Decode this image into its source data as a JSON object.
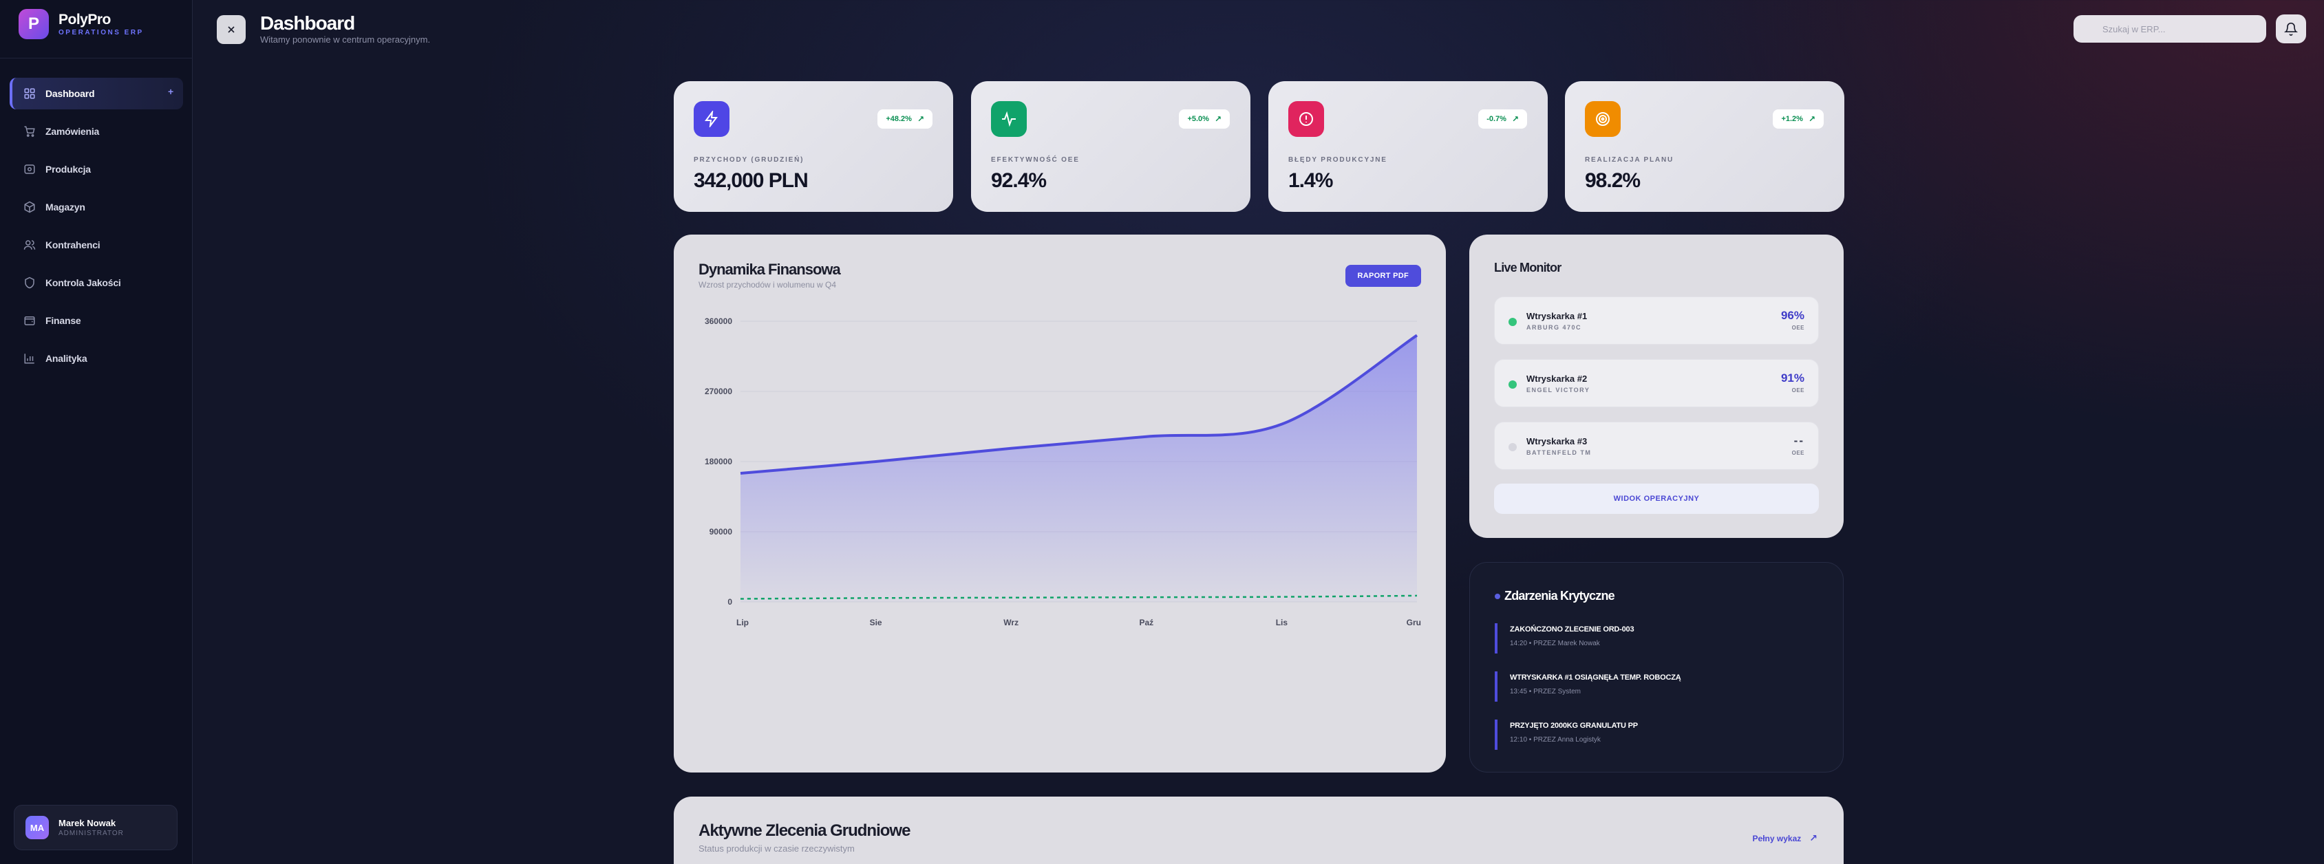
{
  "brand": {
    "name": "PolyPro",
    "sub": "OPERATIONS ERP",
    "logo_letter": "P"
  },
  "nav": {
    "items": [
      {
        "label": "Dashboard",
        "icon": "grid-icon",
        "active": true,
        "plus": "+"
      },
      {
        "label": "Zamówienia",
        "icon": "cart-icon"
      },
      {
        "label": "Produkcja",
        "icon": "factory-icon"
      },
      {
        "label": "Magazyn",
        "icon": "box-icon"
      },
      {
        "label": "Kontrahenci",
        "icon": "users-icon"
      },
      {
        "label": "Kontrola Jakości",
        "icon": "shield-icon"
      },
      {
        "label": "Finanse",
        "icon": "wallet-icon"
      },
      {
        "label": "Analityka",
        "icon": "bar-chart-icon"
      }
    ]
  },
  "user": {
    "initials": "MA",
    "name": "Marek Nowak",
    "role": "ADMINISTRATOR"
  },
  "header": {
    "title": "Dashboard",
    "subtitle": "Witamy ponownie w centrum operacyjnym.",
    "search_placeholder": "Szukaj w ERP..."
  },
  "kpis": [
    {
      "label": "PRZYCHODY (GRUDZIEŃ)",
      "value": "342,000 PLN",
      "badge": "+48.2%",
      "color": "#4f46e5",
      "icon": "bolt-icon"
    },
    {
      "label": "EFEKTYWNOŚĆ OEE",
      "value": "92.4%",
      "badge": "+5.0%",
      "color": "#10a36a",
      "icon": "activity-icon"
    },
    {
      "label": "BŁĘDY PRODUKCYJNE",
      "value": "1.4%",
      "badge": "-0.7%",
      "color": "#e0245e",
      "icon": "alert-icon"
    },
    {
      "label": "REALIZACJA PLANU",
      "value": "98.2%",
      "badge": "+1.2%",
      "color": "#f08c00",
      "icon": "target-icon"
    }
  ],
  "finance": {
    "title": "Dynamika Finansowa",
    "subtitle": "Wzrost przychodów i wolumenu w Q4",
    "button": "RAPORT PDF"
  },
  "chart_data": {
    "type": "area",
    "categories": [
      "Lip",
      "Sie",
      "Wrz",
      "Paź",
      "Lis",
      "Gru"
    ],
    "y_ticks": [
      "360000",
      "270000",
      "180000",
      "90000",
      "0"
    ],
    "ylim": [
      0,
      360000
    ],
    "series": [
      {
        "values": [
          165000,
          180000,
          197000,
          212000,
          228000,
          342000
        ],
        "color": "#4f4cdc"
      },
      {
        "values": [
          4000,
          5000,
          5500,
          6000,
          6500,
          8000
        ],
        "color": "#10a36a"
      }
    ],
    "grid": true
  },
  "monitor": {
    "title": "Live Monitor",
    "machines": [
      {
        "name": "Wtryskarka #1",
        "model": "ARBURG 470C",
        "value": "96%",
        "unit": "OEE",
        "status_color": "#34c47c"
      },
      {
        "name": "Wtryskarka #2",
        "model": "ENGEL VICTORY",
        "value": "91%",
        "unit": "OEE",
        "status_color": "#34c47c"
      },
      {
        "name": "Wtryskarka #3",
        "model": "BATTENFELD TM",
        "value": "--",
        "unit": "OEE",
        "status_color": "#d6d6de"
      }
    ],
    "button": "WIDOK OPERACYJNY"
  },
  "events": {
    "title": "Zdarzenia Krytyczne",
    "items": [
      {
        "title": "ZAKOŃCZONO ZLECENIE ORD-003",
        "meta": "14:20 • PRZEZ Marek Nowak"
      },
      {
        "title": "WTRYSKARKA #1 OSIĄGNĘŁA TEMP. ROBOCZĄ",
        "meta": "13:45 • PRZEZ System"
      },
      {
        "title": "PRZYJĘTO 2000KG GRANULATU PP",
        "meta": "12:10 • PRZEZ Anna Logistyk"
      }
    ]
  },
  "orders": {
    "title": "Aktywne Zlecenia Grudniowe",
    "subtitle": "Status produkcji w czasie rzeczywistym",
    "link": "Pełny wykaz"
  }
}
